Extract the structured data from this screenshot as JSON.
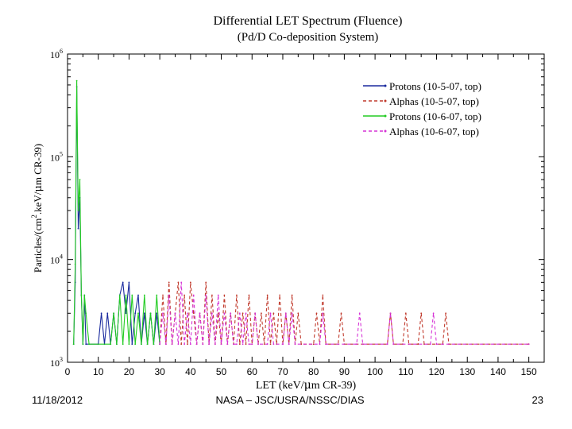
{
  "footer": {
    "date": "11/18/2012",
    "organization": "NASA – JSC/USRA/NSSC/DIAS",
    "page_number": "23"
  },
  "chart_data": {
    "type": "line",
    "title": "Differential LET Spectrum (Fluence)",
    "subtitle": "(Pd/D Co-deposition System)",
    "xlabel_prefix": "LET (keV/",
    "xlabel_mu": "μ",
    "xlabel_suffix": "m CR-39)",
    "ylabel_prefix": "Particles/(cm",
    "ylabel_sup": "2",
    "ylabel_mid": ".keV/",
    "ylabel_mu": "μ",
    "ylabel_suffix": "m CR-39)",
    "xlim": [
      0,
      155
    ],
    "ylim": [
      1000,
      1000000
    ],
    "yscale": "log",
    "x_ticks": [
      "0",
      "10",
      "20",
      "30",
      "40",
      "50",
      "60",
      "70",
      "80",
      "90",
      "100",
      "110",
      "120",
      "130",
      "140",
      "150"
    ],
    "y_ticks": [
      {
        "base": "10",
        "exp": "3",
        "value": 1000
      },
      {
        "base": "10",
        "exp": "4",
        "value": 10000
      },
      {
        "base": "10",
        "exp": "5",
        "value": 100000
      },
      {
        "base": "10",
        "exp": "6",
        "value": 1000000
      }
    ],
    "grid": false,
    "legend_position": "top-right",
    "series": [
      {
        "name": "Protons (10-5-07, top)",
        "color": "#1a2a9e",
        "dash": "solid",
        "points": [
          [
            2,
            1500
          ],
          [
            2.5,
            6000
          ],
          [
            3,
            480000
          ],
          [
            3.5,
            20000
          ],
          [
            4,
            40000
          ],
          [
            4.5,
            4500
          ],
          [
            5,
            1500
          ],
          [
            5.5,
            4500
          ],
          [
            6,
            1500
          ],
          [
            10,
            1500
          ],
          [
            11,
            3000
          ],
          [
            12,
            1500
          ],
          [
            13,
            3000
          ],
          [
            14,
            1500
          ],
          [
            15,
            3000
          ],
          [
            16,
            1500
          ],
          [
            17,
            4500
          ],
          [
            18,
            6000
          ],
          [
            19,
            3000
          ],
          [
            20,
            6000
          ],
          [
            21,
            1500
          ],
          [
            22,
            3000
          ],
          [
            23,
            4500
          ],
          [
            24,
            1500
          ],
          [
            25,
            3000
          ],
          [
            26,
            1500
          ],
          [
            27,
            3000
          ],
          [
            28,
            1500
          ],
          [
            29,
            3000
          ],
          [
            30,
            1500
          ]
        ]
      },
      {
        "name": "Alphas (10-5-07, top)",
        "color": "#c0392b",
        "dash": "dashed",
        "points": [
          [
            30,
            1500
          ],
          [
            31,
            4500
          ],
          [
            32,
            1500
          ],
          [
            33,
            6000
          ],
          [
            34,
            1500
          ],
          [
            35,
            3000
          ],
          [
            36,
            6000
          ],
          [
            37,
            1500
          ],
          [
            38,
            4500
          ],
          [
            39,
            1500
          ],
          [
            40,
            6000
          ],
          [
            41,
            3000
          ],
          [
            42,
            1500
          ],
          [
            43,
            3000
          ],
          [
            44,
            1500
          ],
          [
            45,
            6000
          ],
          [
            46,
            1500
          ],
          [
            47,
            4500
          ],
          [
            48,
            1500
          ],
          [
            49,
            3000
          ],
          [
            50,
            1500
          ],
          [
            51,
            4500
          ],
          [
            52,
            1500
          ],
          [
            53,
            3000
          ],
          [
            54,
            1500
          ],
          [
            55,
            4500
          ],
          [
            56,
            1500
          ],
          [
            57,
            3000
          ],
          [
            58,
            1500
          ],
          [
            59,
            4500
          ],
          [
            60,
            1500
          ],
          [
            61,
            3000
          ],
          [
            62,
            1500
          ],
          [
            63,
            3000
          ],
          [
            64,
            1500
          ],
          [
            65,
            4500
          ],
          [
            66,
            1500
          ],
          [
            67,
            3000
          ],
          [
            68,
            1500
          ],
          [
            69,
            4500
          ],
          [
            70,
            1500
          ],
          [
            71,
            3000
          ],
          [
            72,
            1500
          ],
          [
            73,
            4500
          ],
          [
            74,
            1500
          ],
          [
            75,
            3000
          ],
          [
            76,
            1500
          ],
          [
            80,
            1500
          ],
          [
            81,
            3000
          ],
          [
            82,
            1500
          ],
          [
            83,
            4500
          ],
          [
            84,
            1500
          ],
          [
            88,
            1500
          ],
          [
            89,
            3000
          ],
          [
            90,
            1500
          ],
          [
            104,
            1500
          ],
          [
            105,
            3000
          ],
          [
            106,
            1500
          ],
          [
            109,
            1500
          ],
          [
            110,
            3000
          ],
          [
            111,
            1500
          ],
          [
            114,
            1500
          ],
          [
            115,
            3000
          ],
          [
            116,
            1500
          ],
          [
            122,
            1500
          ],
          [
            123,
            3000
          ],
          [
            124,
            1500
          ],
          [
            150,
            1500
          ]
        ]
      },
      {
        "name": "Protons (10-6-07, top)",
        "color": "#22cc22",
        "dash": "solid",
        "points": [
          [
            2,
            1500
          ],
          [
            2.5,
            9000
          ],
          [
            3,
            550000
          ],
          [
            3.5,
            30000
          ],
          [
            4,
            60000
          ],
          [
            4.5,
            4500
          ],
          [
            5,
            1500
          ],
          [
            5.5,
            4500
          ],
          [
            6,
            3000
          ],
          [
            7,
            1500
          ],
          [
            14,
            1500
          ],
          [
            15,
            3000
          ],
          [
            16,
            1500
          ],
          [
            17,
            4500
          ],
          [
            18,
            1500
          ],
          [
            19,
            4500
          ],
          [
            20,
            1500
          ],
          [
            21,
            4500
          ],
          [
            22,
            1500
          ],
          [
            23,
            3000
          ],
          [
            24,
            1500
          ],
          [
            25,
            4500
          ],
          [
            26,
            1500
          ],
          [
            27,
            3000
          ],
          [
            28,
            1500
          ],
          [
            29,
            4500
          ],
          [
            30,
            1500
          ]
        ]
      },
      {
        "name": "Alphas (10-6-07, top)",
        "color": "#d633d6",
        "dash": "dashed",
        "points": [
          [
            30,
            1500
          ],
          [
            31,
            3000
          ],
          [
            32,
            1500
          ],
          [
            33,
            4500
          ],
          [
            34,
            1500
          ],
          [
            35,
            3000
          ],
          [
            36,
            1500
          ],
          [
            37,
            6000
          ],
          [
            38,
            1500
          ],
          [
            39,
            3000
          ],
          [
            40,
            1500
          ],
          [
            41,
            4500
          ],
          [
            42,
            1500
          ],
          [
            43,
            3000
          ],
          [
            44,
            1500
          ],
          [
            45,
            4500
          ],
          [
            46,
            1500
          ],
          [
            47,
            3000
          ],
          [
            48,
            1500
          ],
          [
            49,
            4500
          ],
          [
            50,
            1500
          ],
          [
            51,
            3000
          ],
          [
            52,
            1500
          ],
          [
            53,
            3000
          ],
          [
            54,
            1500
          ],
          [
            55,
            1500
          ],
          [
            56,
            3000
          ],
          [
            57,
            1500
          ],
          [
            58,
            3000
          ],
          [
            59,
            1500
          ],
          [
            60,
            1500
          ],
          [
            61,
            3000
          ],
          [
            62,
            1500
          ],
          [
            65,
            1500
          ],
          [
            66,
            3000
          ],
          [
            67,
            1500
          ],
          [
            70,
            1500
          ],
          [
            71,
            3000
          ],
          [
            72,
            1500
          ],
          [
            73,
            3000
          ],
          [
            74,
            1500
          ],
          [
            82,
            1500
          ],
          [
            83,
            3000
          ],
          [
            84,
            1500
          ],
          [
            94,
            1500
          ],
          [
            95,
            3000
          ],
          [
            96,
            1500
          ],
          [
            104,
            1500
          ],
          [
            105,
            3000
          ],
          [
            106,
            1500
          ],
          [
            118,
            1500
          ],
          [
            119,
            3000
          ],
          [
            120,
            1500
          ],
          [
            150,
            1500
          ]
        ]
      }
    ]
  }
}
